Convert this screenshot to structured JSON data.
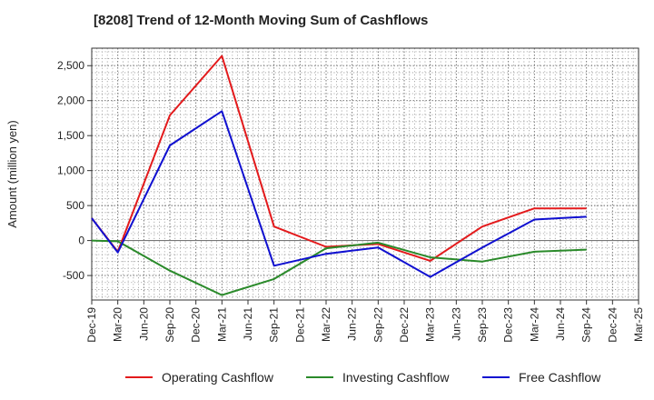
{
  "chart_data": {
    "type": "line",
    "title": "[8208]  Trend of 12-Month Moving Sum of Cashflows",
    "xlabel": "",
    "ylabel": "Amount (million yen)",
    "categories": [
      "Dec-19",
      "Mar-20",
      "Jun-20",
      "Sep-20",
      "Dec-20",
      "Mar-21",
      "Jun-21",
      "Sep-21",
      "Dec-21",
      "Mar-22",
      "Jun-22",
      "Sep-22",
      "Dec-22",
      "Mar-23",
      "Jun-23",
      "Sep-23",
      "Dec-23",
      "Mar-24",
      "Jun-24",
      "Sep-24",
      "Dec-24",
      "Mar-25"
    ],
    "ylim": [
      -850,
      2750
    ],
    "yticks": [
      -500,
      0,
      500,
      1000,
      1500,
      2000,
      2500
    ],
    "ytick_labels": [
      "-500",
      "0",
      "500",
      "1,000",
      "1,500",
      "2,000",
      "2,500"
    ],
    "grid": true,
    "legend_position": "bottom",
    "series": [
      {
        "name": "Operating Cashflow",
        "color": "#e31a1c",
        "values": [
          320,
          -160,
          null,
          1790,
          null,
          2640,
          null,
          200,
          null,
          -90,
          null,
          -50,
          null,
          -290,
          null,
          200,
          null,
          460,
          null,
          460,
          null,
          null
        ]
      },
      {
        "name": "Investing Cashflow",
        "color": "#2a8a2a",
        "values": [
          0,
          -10,
          null,
          -430,
          null,
          -780,
          null,
          -550,
          null,
          -110,
          null,
          -30,
          null,
          -240,
          null,
          -300,
          null,
          -160,
          null,
          -130,
          null,
          null
        ]
      },
      {
        "name": "Free Cashflow",
        "color": "#1010d0",
        "values": [
          320,
          -170,
          null,
          1360,
          null,
          1850,
          null,
          -360,
          null,
          -190,
          null,
          -100,
          null,
          -520,
          null,
          -100,
          null,
          300,
          null,
          340,
          null,
          null
        ]
      }
    ]
  }
}
